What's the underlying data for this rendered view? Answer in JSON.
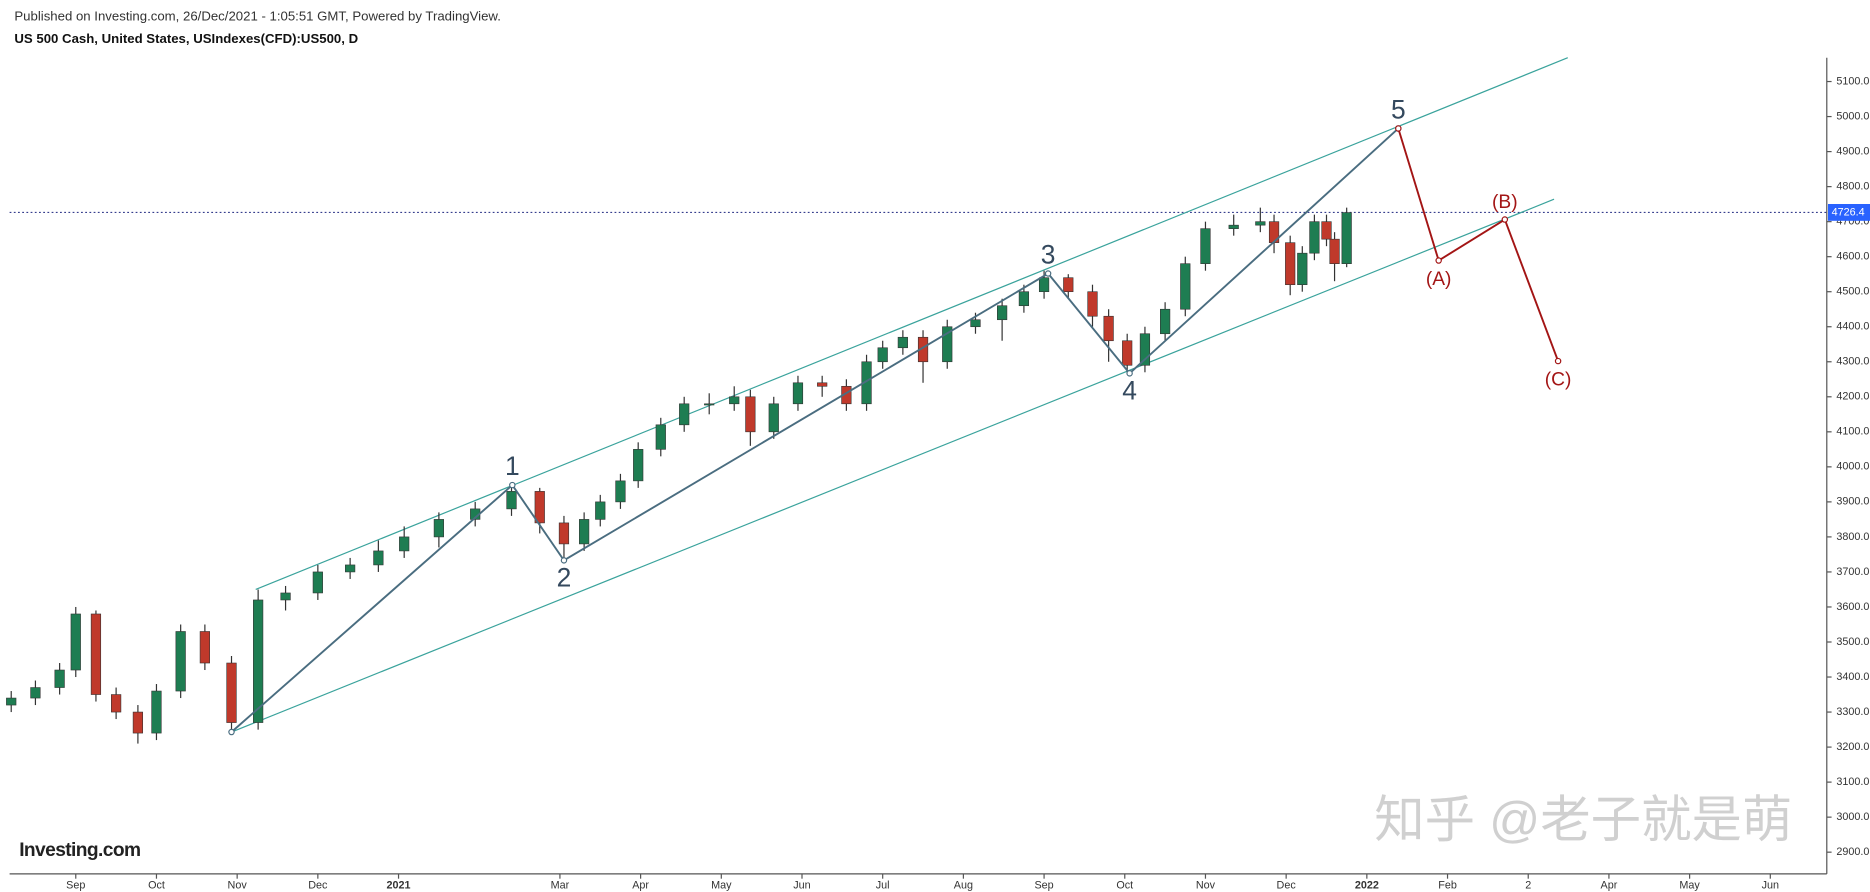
{
  "chart_data": {
    "type": "candlestick",
    "published": "Published on Investing.com, 26/Dec/2021 - 1:05:51 GMT, Powered by TradingView.",
    "title": "US 500 Cash, United States, USIndexes(CFD):US500, D",
    "logo": "Investing.com",
    "watermark": "知乎 @老子就是萌",
    "xlim": [
      -0.82,
      21.7
    ],
    "ylim": [
      2838,
      5168
    ],
    "xticks": [
      {
        "value": 0,
        "label": "Sep"
      },
      {
        "value": 1,
        "label": "Oct"
      },
      {
        "value": 2,
        "label": "Nov"
      },
      {
        "value": 3,
        "label": "Dec"
      },
      {
        "value": 4,
        "label": "2021"
      },
      {
        "value": 6,
        "label": "Mar"
      },
      {
        "value": 7,
        "label": "Apr"
      },
      {
        "value": 8,
        "label": "May"
      },
      {
        "value": 9,
        "label": "Jun"
      },
      {
        "value": 10,
        "label": "Jul"
      },
      {
        "value": 11,
        "label": "Aug"
      },
      {
        "value": 12,
        "label": "Sep"
      },
      {
        "value": 13,
        "label": "Oct"
      },
      {
        "value": 14,
        "label": "Nov"
      },
      {
        "value": 15,
        "label": "Dec"
      },
      {
        "value": 16,
        "label": "2022"
      },
      {
        "value": 17,
        "label": "Feb"
      },
      {
        "value": 18,
        "label": "2"
      },
      {
        "value": 19,
        "label": "Apr"
      },
      {
        "value": 20,
        "label": "May"
      },
      {
        "value": 21,
        "label": "Jun"
      }
    ],
    "yticks": [
      {
        "value": 2900,
        "label": "2900.0"
      },
      {
        "value": 3000,
        "label": "3000.0"
      },
      {
        "value": 3100,
        "label": "3100.0"
      },
      {
        "value": 3200,
        "label": "3200.0"
      },
      {
        "value": 3300,
        "label": "3300.0"
      },
      {
        "value": 3400,
        "label": "3400.0"
      },
      {
        "value": 3500,
        "label": "3500.0"
      },
      {
        "value": 3600,
        "label": "3600.0"
      },
      {
        "value": 3700,
        "label": "3700.0"
      },
      {
        "value": 3800,
        "label": "3800.0"
      },
      {
        "value": 3900,
        "label": "3900.0"
      },
      {
        "value": 4000,
        "label": "4000.0"
      },
      {
        "value": 4100,
        "label": "4100.0"
      },
      {
        "value": 4200,
        "label": "4200.0"
      },
      {
        "value": 4300,
        "label": "4300.0"
      },
      {
        "value": 4400,
        "label": "4400.0"
      },
      {
        "value": 4500,
        "label": "4500.0"
      },
      {
        "value": 4600,
        "label": "4600.0"
      },
      {
        "value": 4700,
        "label": "4700.0"
      },
      {
        "value": 4800,
        "label": "4800.0"
      },
      {
        "value": 4900,
        "label": "4900.0"
      },
      {
        "value": 5000,
        "label": "5000.0"
      },
      {
        "value": 5100,
        "label": "5100.0"
      }
    ],
    "up_color": "#1e7d52",
    "down_color": "#c0392b",
    "x": [
      -0.8,
      -0.5,
      -0.2,
      0.0,
      0.25,
      0.5,
      0.77,
      1.0,
      1.3,
      1.6,
      1.93,
      2.26,
      2.6,
      3.0,
      3.4,
      3.75,
      4.07,
      4.5,
      4.95,
      5.4,
      5.75,
      6.05,
      6.3,
      6.5,
      6.75,
      6.97,
      7.25,
      7.54,
      7.85,
      8.16,
      8.36,
      8.65,
      8.95,
      9.25,
      9.55,
      9.8,
      10.0,
      10.25,
      10.5,
      10.8,
      11.15,
      11.48,
      11.75,
      12.0,
      12.3,
      12.6,
      12.8,
      13.03,
      13.25,
      13.5,
      13.75,
      14.0,
      14.35,
      14.68,
      14.85,
      15.05,
      15.2,
      15.35,
      15.5,
      15.6,
      15.75
    ],
    "open": [
      3320,
      3340,
      3370,
      3420,
      3580,
      3350,
      3300,
      3240,
      3360,
      3530,
      3440,
      3270,
      3620,
      3640,
      3700,
      3720,
      3760,
      3800,
      3850,
      3880,
      3930,
      3840,
      3780,
      3850,
      3900,
      3960,
      4050,
      4120,
      4180,
      4180,
      4200,
      4100,
      4180,
      4240,
      4230,
      4180,
      4300,
      4340,
      4370,
      4300,
      4400,
      4420,
      4460,
      4500,
      4540,
      4500,
      4430,
      4360,
      4290,
      4380,
      4450,
      4580,
      4680,
      4690,
      4700,
      4640,
      4520,
      4610,
      4700,
      4650,
      4580
    ],
    "high": [
      3360,
      3390,
      3440,
      3600,
      3590,
      3370,
      3320,
      3380,
      3550,
      3550,
      3460,
      3650,
      3660,
      3720,
      3740,
      3790,
      3830,
      3870,
      3900,
      3950,
      3940,
      3860,
      3870,
      3920,
      3980,
      4070,
      4140,
      4200,
      4210,
      4230,
      4220,
      4200,
      4260,
      4260,
      4250,
      4320,
      4360,
      4390,
      4390,
      4420,
      4440,
      4480,
      4520,
      4560,
      4550,
      4520,
      4450,
      4380,
      4400,
      4470,
      4600,
      4700,
      4720,
      4740,
      4720,
      4660,
      4630,
      4720,
      4720,
      4670,
      4740
    ],
    "low": [
      3300,
      3320,
      3350,
      3400,
      3330,
      3280,
      3210,
      3220,
      3340,
      3420,
      3240,
      3250,
      3590,
      3620,
      3680,
      3700,
      3740,
      3770,
      3830,
      3860,
      3810,
      3730,
      3760,
      3830,
      3880,
      3940,
      4030,
      4100,
      4150,
      4160,
      4060,
      4080,
      4160,
      4200,
      4160,
      4160,
      4280,
      4320,
      4240,
      4280,
      4380,
      4360,
      4440,
      4480,
      4480,
      4400,
      4300,
      4270,
      4270,
      4360,
      4430,
      4560,
      4660,
      4670,
      4610,
      4490,
      4500,
      4590,
      4630,
      4530,
      4570
    ],
    "close": [
      3340,
      3370,
      3420,
      3580,
      3350,
      3300,
      3240,
      3360,
      3530,
      3440,
      3270,
      3620,
      3640,
      3700,
      3720,
      3760,
      3800,
      3850,
      3880,
      3930,
      3840,
      3780,
      3850,
      3900,
      3960,
      4050,
      4120,
      4180,
      4180,
      4200,
      4100,
      4180,
      4240,
      4230,
      4180,
      4300,
      4340,
      4370,
      4300,
      4400,
      4420,
      4460,
      4500,
      4540,
      4500,
      4430,
      4360,
      4290,
      4380,
      4450,
      4580,
      4680,
      4690,
      4700,
      4640,
      4520,
      4610,
      4700,
      4650,
      4580,
      4726
    ],
    "last_price": 4726.4,
    "last_color": "#2962ff",
    "channels": [
      {
        "color": "#3aa39c",
        "x": [
          2.23,
          18.49
        ],
        "y": [
          3650,
          5168
        ]
      },
      {
        "color": "#3aa39c",
        "x": [
          1.93,
          18.32
        ],
        "y": [
          3243,
          4764
        ]
      }
    ],
    "waves": [
      {
        "color": "#4a6d80",
        "x": [
          1.93,
          5.41,
          6.05,
          12.05,
          13.06,
          16.39
        ],
        "y": [
          3243,
          3948,
          3733,
          4552,
          4267,
          4966
        ],
        "labels": [
          {
            "index": 1,
            "text": "1"
          },
          {
            "index": 2,
            "text": "2"
          },
          {
            "index": 3,
            "text": "3"
          },
          {
            "index": 4,
            "text": "4"
          },
          {
            "index": 5,
            "text": "5"
          }
        ]
      },
      {
        "color": "#a31515",
        "x": [
          16.39,
          16.89,
          17.71,
          18.37
        ],
        "y": [
          4966,
          4589,
          4706,
          4302
        ],
        "labels": [
          {
            "index": 1,
            "text": "(A)"
          },
          {
            "index": 2,
            "text": "(B)"
          },
          {
            "index": 3,
            "text": "(C)"
          }
        ]
      }
    ]
  }
}
